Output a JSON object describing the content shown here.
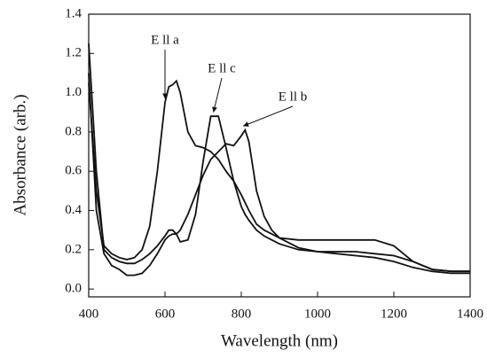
{
  "chart_data": {
    "type": "line",
    "x_label": "Wavelength (nm)",
    "y_label": "Absorbance (arb.)",
    "x": [
      400,
      420,
      440,
      460,
      480,
      500,
      520,
      540,
      560,
      580,
      600,
      610,
      620,
      630,
      640,
      660,
      680,
      700,
      720,
      740,
      760,
      780,
      800,
      810,
      820,
      840,
      860,
      880,
      900,
      950,
      1000,
      1050,
      1100,
      1150,
      1200,
      1250,
      1300,
      1350,
      1400
    ],
    "series": [
      {
        "name": "E ll a",
        "color": "#111111",
        "values": [
          1.05,
          0.5,
          0.22,
          0.18,
          0.16,
          0.15,
          0.16,
          0.2,
          0.32,
          0.6,
          0.95,
          1.03,
          1.04,
          1.06,
          1.0,
          0.8,
          0.73,
          0.72,
          0.7,
          0.66,
          0.6,
          0.55,
          0.48,
          0.44,
          0.4,
          0.33,
          0.3,
          0.28,
          0.26,
          0.25,
          0.25,
          0.25,
          0.25,
          0.25,
          0.22,
          0.14,
          0.1,
          0.09,
          0.09
        ]
      },
      {
        "name": "E ll c",
        "color": "#111111",
        "values": [
          1.25,
          0.6,
          0.2,
          0.16,
          0.14,
          0.13,
          0.13,
          0.15,
          0.18,
          0.22,
          0.27,
          0.3,
          0.3,
          0.28,
          0.24,
          0.25,
          0.38,
          0.65,
          0.88,
          0.88,
          0.72,
          0.55,
          0.42,
          0.38,
          0.35,
          0.3,
          0.27,
          0.25,
          0.23,
          0.2,
          0.19,
          0.19,
          0.19,
          0.18,
          0.17,
          0.14,
          0.1,
          0.09,
          0.09
        ]
      },
      {
        "name": "E ll b",
        "color": "#111111",
        "values": [
          1.1,
          0.4,
          0.18,
          0.12,
          0.1,
          0.07,
          0.07,
          0.08,
          0.12,
          0.18,
          0.25,
          0.27,
          0.28,
          0.28,
          0.3,
          0.38,
          0.48,
          0.58,
          0.66,
          0.7,
          0.74,
          0.73,
          0.78,
          0.81,
          0.75,
          0.5,
          0.37,
          0.3,
          0.26,
          0.21,
          0.19,
          0.18,
          0.17,
          0.16,
          0.14,
          0.11,
          0.09,
          0.08,
          0.08
        ]
      }
    ],
    "xlim": [
      400,
      1400
    ],
    "xticks": [
      400,
      600,
      800,
      1000,
      1200,
      1400
    ],
    "ylim": [
      -0.04,
      1.4
    ],
    "yticks": [
      {
        "value": 0,
        "label": "0.0"
      },
      0.2,
      0.4,
      0.6,
      0.8,
      {
        "value": 1,
        "label": "1.0"
      },
      1.2,
      1.4
    ],
    "grid": false
  }
}
